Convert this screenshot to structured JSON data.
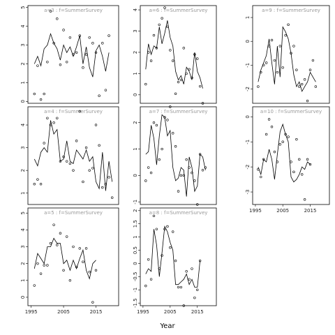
{
  "chart_data": {
    "type": "scatter",
    "xlabel": "Year",
    "x": [
      1996,
      1997,
      1998,
      1999,
      2000,
      2001,
      2002,
      2003,
      2004,
      2005,
      2006,
      2007,
      2008,
      2009,
      2010,
      2011,
      2012,
      2013,
      2014,
      2015,
      2016,
      2017,
      2018,
      2019,
      2020
    ],
    "x_ticks": [
      1995,
      2005,
      2015
    ],
    "x_tick_labels": [
      "1995",
      "2005",
      "2015"
    ],
    "x_lim": [
      1994,
      2022
    ],
    "panels": [
      {
        "label": "a=3 : f=SummerSurvey",
        "ylim": [
          -0.1,
          5.1
        ],
        "y_ticks": [
          0,
          1,
          2,
          3,
          4,
          5
        ],
        "points": [
          0.4,
          1.9,
          0.1,
          0.4,
          2.1,
          4.8,
          3.1,
          4.4,
          1.95,
          3.8,
          2.1,
          3.4,
          2.5,
          2.6,
          3.5,
          1.8,
          2.5,
          3.4,
          3.1,
          2.6,
          0.3,
          3.1,
          0.6,
          3.5
        ],
        "line": [
          2.0,
          2.4,
          1.9,
          2.8,
          3.0,
          3.6,
          3.1,
          2.8,
          2.2,
          3.0,
          2.6,
          2.9,
          2.4,
          2.9,
          3.5,
          2.0,
          2.9,
          1.8,
          1.3,
          2.7,
          3.0,
          2.4,
          1.6,
          2.6
        ]
      },
      {
        "label": "a=6 : f=SummerSurvey",
        "ylim": [
          -0.4,
          4.2
        ],
        "y_ticks": [
          0,
          1,
          2,
          3,
          4
        ],
        "points": [
          0.5,
          2.0,
          1.6,
          2.8,
          2.2,
          3.3,
          3.6,
          4.1,
          3.2,
          2.1,
          1.6,
          0.05,
          0.6,
          0.7,
          2.2,
          1.0,
          1.2,
          0.8,
          1.9,
          1.7,
          0.4,
          -0.4
        ],
        "line": [
          1.2,
          2.4,
          1.9,
          2.3,
          2.2,
          3.2,
          2.4,
          2.9,
          3.5,
          2.7,
          2.3,
          1.1,
          0.7,
          0.9,
          0.5,
          1.3,
          1.1,
          0.7,
          2.0,
          1.1,
          0.8,
          0.3
        ]
      },
      {
        "label": "a=9 : f=SummerSurvey",
        "ylim": [
          -2.6,
          1.5
        ],
        "y_ticks": [
          -2,
          -1,
          0,
          1
        ],
        "points": [
          -1.9,
          -1.3,
          -1.0,
          -0.9,
          -0.2,
          0.05,
          -0.8,
          -1.3,
          -0.2,
          -1.1,
          0.25,
          0.7,
          -0.5,
          -0.2,
          -1.2,
          -1.9,
          -1.8,
          -1.6,
          -2.5,
          -1.2,
          -0.8,
          -1.9
        ],
        "line": [
          -1.7,
          -1.2,
          -0.9,
          -0.6,
          0.1,
          -0.9,
          -1.8,
          -0.2,
          -1.5,
          0.6,
          0.4,
          0.1,
          -0.5,
          -1.4,
          -1.9,
          -1.7,
          -2.1,
          -1.9,
          -1.7,
          -1.3,
          -1.5,
          -1.7
        ]
      },
      {
        "label": "a=4 : f=SummerSurvey",
        "ylim": [
          0.5,
          4.8
        ],
        "y_ticks": [
          1,
          2,
          3,
          4
        ],
        "points": [
          1.4,
          1.6,
          1.4,
          3.2,
          4.3,
          4.0,
          4.1,
          4.3,
          2.4,
          2.6,
          2.4,
          2.3,
          2.0,
          3.3,
          4.6,
          1.5,
          3.0,
          2.0,
          2.1,
          4.0,
          3.1,
          1.25,
          1.4,
          1.7,
          0.8
        ],
        "line": [
          2.5,
          2.2,
          2.8,
          3.0,
          2.8,
          4.2,
          3.6,
          3.8,
          2.4,
          2.5,
          3.3,
          2.4,
          2.3,
          2.9,
          2.7,
          2.5,
          2.9,
          2.4,
          2.6,
          1.5,
          1.2,
          2.8,
          1.1,
          2.4,
          1.5
        ]
      },
      {
        "label": "a=7 : f=SummerSurvey",
        "ylim": [
          -1.1,
          2.6
        ],
        "y_ticks": [
          -1,
          0,
          1,
          2
        ],
        "points": [
          -0.2,
          0.3,
          0.1,
          2.0,
          1.9,
          0.6,
          1.0,
          2.2,
          2.1,
          2.6,
          1.6,
          1.1,
          -0.6,
          0.0,
          0.0,
          0.6,
          0.3,
          0.1,
          -0.2,
          -1.1,
          0.8,
          0.2,
          0.3
        ],
        "line": [
          0.8,
          0.9,
          1.9,
          1.4,
          0.4,
          1.5,
          2.3,
          2.2,
          1.5,
          1.7,
          0.3,
          -0.2,
          -0.1,
          0.3,
          0.2,
          -0.8,
          0.7,
          0.3,
          -0.6,
          -0.4,
          0.8,
          0.7,
          0.2
        ]
      },
      {
        "label": "a=10 : f=SummerSurvey",
        "ylim": [
          -3.5,
          0.4
        ],
        "y_ticks": [
          -3,
          -2,
          -1,
          0
        ],
        "points": [
          -2.1,
          -2.4,
          -1.7,
          -0.7,
          -0.1,
          -0.4,
          -1.4,
          -1.8,
          -1.1,
          -1.0,
          -0.7,
          -0.8,
          -1.8,
          -2.2,
          -0.9,
          -1.7,
          -2.3,
          -3.3,
          -1.7,
          -1.9
        ],
        "line": [
          -2.0,
          -2.3,
          -1.7,
          -1.8,
          -1.3,
          -1.7,
          -2.5,
          -1.5,
          -0.6,
          -0.3,
          -0.7,
          -1.0,
          -2.4,
          -2.6,
          -2.5,
          -2.3,
          -2.0,
          -2.1,
          -1.8,
          -1.9
        ]
      },
      {
        "label": "a=5 : f=SummerSurvey",
        "ylim": [
          -0.5,
          5.3
        ],
        "y_ticks": [
          0,
          1,
          2,
          3,
          4,
          5
        ],
        "points": [
          0.7,
          2.0,
          1.4,
          1.9,
          1.9,
          3.2,
          4.3,
          3.1,
          3.8,
          1.6,
          3.6,
          1.0,
          3.0,
          1.8,
          2.9,
          2.1,
          2.9,
          1.5,
          -0.3,
          1.6
        ],
        "line": [
          1.7,
          2.6,
          2.3,
          2.0,
          3.0,
          3.0,
          3.5,
          3.2,
          3.2,
          2.0,
          2.2,
          1.6,
          2.2,
          1.7,
          2.3,
          2.8,
          1.6,
          1.1,
          2.0,
          2.2
        ]
      },
      {
        "label": "a=8 : f=SummerSurvey",
        "ylim": [
          -1.6,
          2.1
        ],
        "y_ticks": [
          -1.5,
          -1.0,
          -0.5,
          0.0,
          0.5,
          1.0,
          1.5,
          2.0
        ],
        "points": [
          -0.85,
          0.15,
          -0.6,
          1.8,
          1.3,
          -0.2,
          0.3,
          1.3,
          1.4,
          0.6,
          1.2,
          0.1,
          -0.9,
          -0.9,
          -1.6,
          -0.3,
          -0.6,
          -0.2,
          -1.3,
          -1.0,
          0.1
        ],
        "line": [
          -0.4,
          -0.2,
          -0.3,
          1.3,
          0.7,
          -0.5,
          0.4,
          1.4,
          1.2,
          0.8,
          0.5,
          -0.8,
          -0.8,
          -0.7,
          -0.6,
          -0.4,
          -0.8,
          -0.6,
          -0.9,
          -0.9,
          0.1
        ]
      }
    ]
  }
}
